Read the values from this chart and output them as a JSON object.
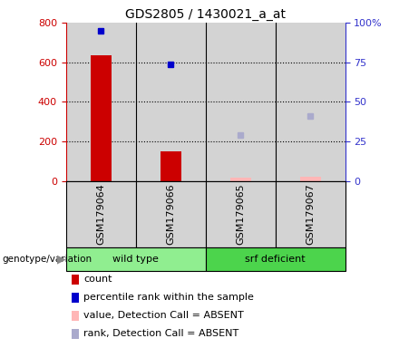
{
  "title": "GDS2805 / 1430021_a_at",
  "samples": [
    "GSM179064",
    "GSM179066",
    "GSM179065",
    "GSM179067"
  ],
  "groups": [
    "wild type",
    "wild type",
    "srf deficient",
    "srf deficient"
  ],
  "wt_color": "#90ee90",
  "srf_color": "#4cd44c",
  "bar_colors": [
    "#cc0000",
    "#cc0000",
    "#ffb6b6",
    "#ffb6b6"
  ],
  "count_present": [
    true,
    true,
    false,
    false
  ],
  "count_values": [
    635,
    150,
    18,
    20
  ],
  "rank_values_present": [
    760,
    590,
    null,
    null
  ],
  "rank_values_absent": [
    null,
    null,
    230,
    330
  ],
  "ylim_left": [
    0,
    800
  ],
  "ylim_right": [
    0,
    100
  ],
  "yticks_left": [
    0,
    200,
    400,
    600,
    800
  ],
  "yticks_right": [
    0,
    25,
    50,
    75,
    100
  ],
  "ytick_right_labels": [
    "0",
    "25",
    "50",
    "75",
    "100%"
  ],
  "hlines": [
    200,
    400,
    600
  ],
  "left_axis_color": "#cc0000",
  "right_axis_color": "#3333cc",
  "col_bg_color": "#d3d3d3",
  "bar_width": 0.3,
  "rank_marker_present_color": "#0000cc",
  "rank_marker_absent_color": "#aaaacc",
  "legend_labels": [
    "count",
    "percentile rank within the sample",
    "value, Detection Call = ABSENT",
    "rank, Detection Call = ABSENT"
  ],
  "legend_colors": [
    "#cc0000",
    "#0000cc",
    "#ffb6b6",
    "#aaaacc"
  ],
  "group_label": "genotype/variation",
  "title_fontsize": 10,
  "tick_fontsize": 8,
  "legend_fontsize": 8,
  "sample_label_fontsize": 8
}
